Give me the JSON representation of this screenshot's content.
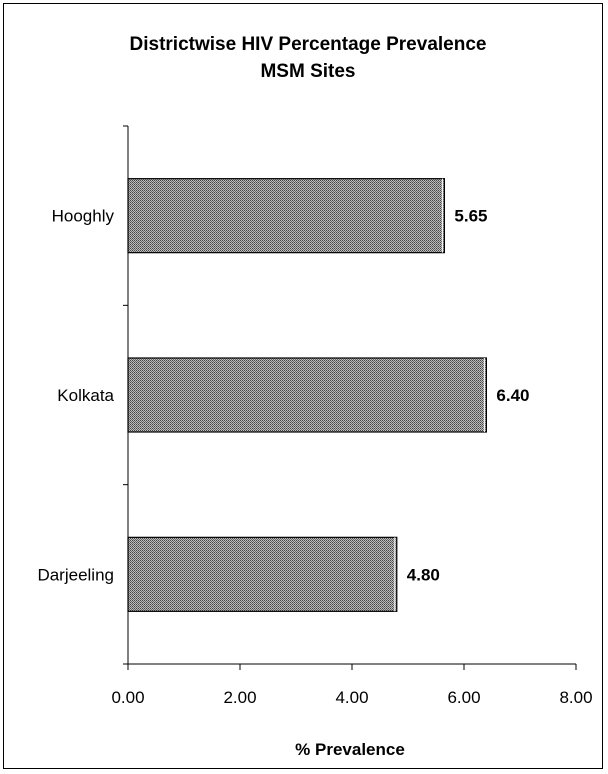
{
  "chart_data": {
    "type": "bar",
    "orientation": "horizontal",
    "title": "Districtwise HIV Percentage Prevalence",
    "subtitle": "MSM Sites",
    "categories": [
      "Hooghly",
      "Kolkata",
      "Darjeeling"
    ],
    "values": [
      5.65,
      6.4,
      4.8
    ],
    "data_labels": [
      "5.65",
      "6.40",
      "4.80"
    ],
    "xlabel": "% Prevalence",
    "ylabel": "",
    "xlim": [
      0,
      8
    ],
    "x_ticks": [
      "0.00",
      "2.00",
      "4.00",
      "6.00",
      "8.00"
    ],
    "grid": false,
    "legend": "none",
    "bar_fill": "#8f8f8f",
    "bar_stroke": "#000000"
  }
}
